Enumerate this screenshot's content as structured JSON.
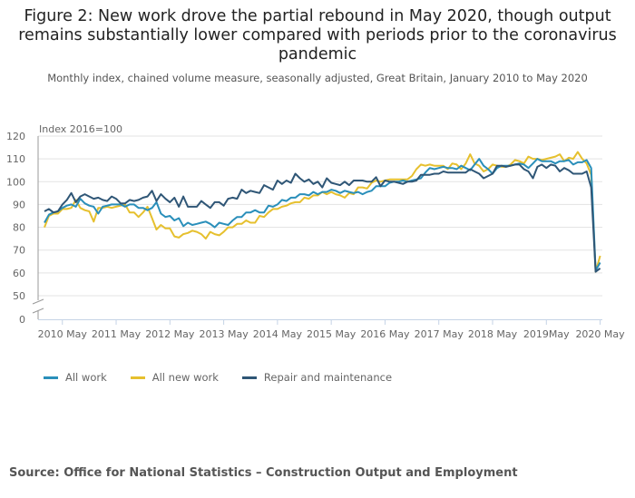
{
  "chart_data": {
    "type": "line",
    "title": "Figure 2: New work drove the partial rebound in May 2020, though output remains substantially lower compared with periods prior to the coronavirus pandemic",
    "subtitle": "Monthly index, chained volume measure, seasonally adjusted, Great Britain, January 2010 to May 2020",
    "ylabel": "Index 2016=100",
    "xlabel": "",
    "ylim": [
      0,
      120
    ],
    "axis_break": [
      0,
      50
    ],
    "yticks": [
      "120",
      "110",
      "100",
      "90",
      "80",
      "70",
      "60",
      "50",
      "0"
    ],
    "xticks": [
      "2010 May",
      "2011 May",
      "2012 May",
      "2013 May",
      "2014 May",
      "2015 May",
      "2016 May",
      "2017 May",
      "2018 May",
      "2019May",
      "2020 May"
    ],
    "x_start": "January 2010",
    "x_end": "May 2020",
    "grid": true,
    "legend_position": "bottom-left",
    "series": [
      {
        "name": "All work",
        "color": "#2a8fba",
        "values": [
          82,
          85.5,
          86.5,
          87,
          88.5,
          89.5,
          90,
          89,
          92.5,
          90.5,
          89.5,
          89,
          86,
          89,
          89.5,
          90,
          90,
          90,
          89,
          90,
          90,
          88.5,
          88.5,
          87.5,
          88.5,
          91,
          86,
          84.5,
          85,
          83,
          84,
          80.5,
          82,
          81,
          81.5,
          82,
          82.5,
          81.5,
          80,
          82,
          81.5,
          81,
          83,
          84.5,
          84.5,
          86.5,
          86.5,
          87.5,
          86.5,
          86.5,
          89.5,
          89,
          90,
          92,
          91.5,
          93,
          93,
          94.5,
          94.5,
          94,
          95.5,
          94.5,
          95.5,
          95.5,
          96.5,
          96,
          95,
          96,
          95.5,
          95,
          95.5,
          94.5,
          95.5,
          96,
          98,
          98,
          98,
          99.5,
          100,
          100,
          100.5,
          100,
          100.5,
          101,
          101.5,
          104,
          106,
          105.5,
          106,
          106.5,
          106,
          106,
          105.5,
          107,
          106,
          105,
          107.5,
          110,
          107,
          105.5,
          103.5,
          106,
          107,
          107,
          107,
          107.5,
          108,
          107.5,
          106,
          108,
          110,
          109,
          109,
          109,
          108,
          109,
          109,
          109.5,
          107.5,
          108.5,
          108.5,
          109.5,
          106,
          61,
          64.5
        ]
      },
      {
        "name": "All new work",
        "color": "#e6c02e",
        "values": [
          80,
          85,
          86,
          86,
          88,
          88,
          88.5,
          92,
          88.5,
          87.5,
          87,
          82.5,
          88.5,
          88.5,
          89,
          88.5,
          89,
          89.5,
          90,
          86.5,
          86.5,
          84.5,
          86.5,
          89,
          84,
          79,
          81,
          79.5,
          79.5,
          76,
          75.5,
          77,
          77.5,
          78.5,
          78,
          77,
          75,
          78,
          77,
          76.5,
          78,
          80,
          80,
          81.5,
          81.5,
          83,
          82,
          82,
          85,
          84.5,
          86.5,
          88,
          88,
          89,
          89.5,
          90.5,
          91,
          91,
          93,
          92.5,
          94,
          94,
          95.5,
          94.5,
          95.5,
          94.5,
          94,
          93,
          95,
          94.5,
          97.5,
          97.5,
          97,
          99.5,
          100.5,
          100,
          100.5,
          101,
          101,
          101,
          101,
          101,
          102.5,
          105.5,
          107.5,
          107,
          107.5,
          107,
          107,
          107,
          105.5,
          108,
          107.5,
          105.5,
          108,
          112,
          108,
          107,
          104.5,
          105.5,
          107.5,
          107,
          106.5,
          106.5,
          107.5,
          109.5,
          109,
          108,
          111,
          110,
          110,
          109.5,
          110,
          110.5,
          111,
          112,
          109,
          110.5,
          110,
          113,
          110,
          108,
          103,
          60.5,
          67.5
        ]
      },
      {
        "name": "Repair and maintenance",
        "color": "#2f5676",
        "values": [
          87,
          88,
          86.5,
          87,
          90,
          92,
          95,
          91,
          93.5,
          94.5,
          93.5,
          92.5,
          93,
          92,
          91.5,
          93.5,
          92.5,
          90.5,
          90.5,
          92,
          91.5,
          92,
          93,
          93.5,
          96,
          91.5,
          94.5,
          92.5,
          91,
          93,
          89,
          93.5,
          89,
          89,
          89,
          91.5,
          90,
          88.5,
          91,
          91,
          89.5,
          92.5,
          93,
          92.5,
          96.5,
          95,
          96,
          95.5,
          95,
          98.5,
          97.5,
          96.5,
          100.5,
          99,
          100.5,
          99.5,
          103.5,
          101.5,
          100,
          101,
          99,
          100,
          97.5,
          101.5,
          99.5,
          99,
          98.5,
          100,
          98.5,
          100.5,
          100.5,
          100.5,
          100,
          100,
          102,
          98,
          100.5,
          100,
          100,
          99.5,
          99,
          100,
          100,
          100.5,
          103,
          103,
          103,
          103.5,
          103.5,
          104.5,
          104,
          104,
          104,
          104,
          104,
          105.5,
          104.5,
          103.5,
          101.5,
          102.5,
          103.5,
          107,
          107,
          106.5,
          107,
          107.5,
          107.5,
          105.5,
          104.5,
          101.5,
          106.5,
          107.5,
          106,
          107.5,
          107,
          104.5,
          106,
          105,
          103.5,
          103.5,
          103.5,
          104.5,
          97.5,
          60.5,
          62
        ]
      }
    ]
  },
  "source": "Source: Office for National Statistics – Construction Output and Employment"
}
